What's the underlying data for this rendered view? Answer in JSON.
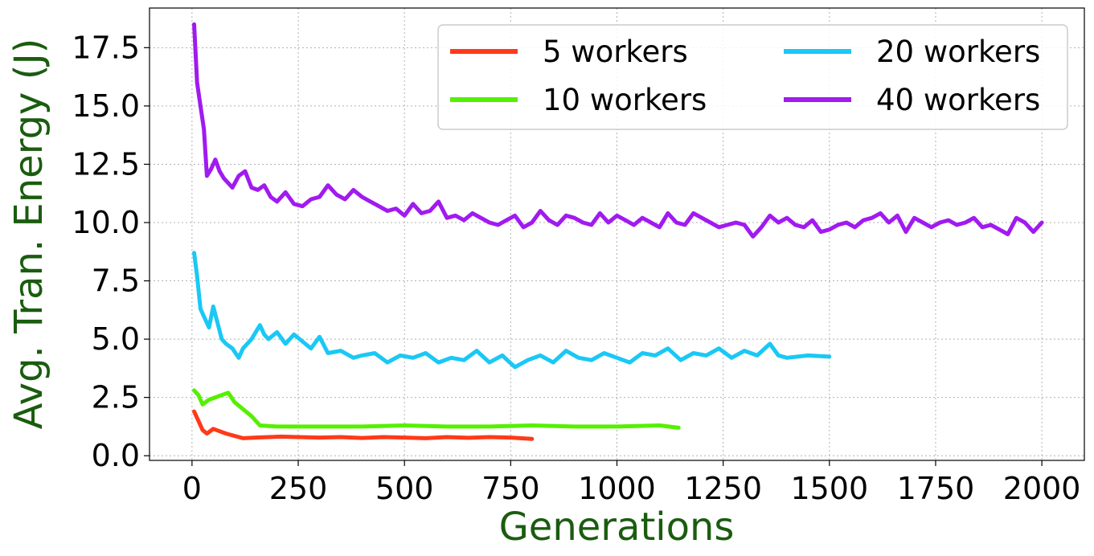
{
  "chart_data": {
    "type": "line",
    "xlabel": "Generations",
    "ylabel": "Avg. Tran. Energy (J)",
    "xlim": [
      -100,
      2100
    ],
    "ylim": [
      -0.2,
      19.2
    ],
    "xticks": [
      0,
      250,
      500,
      750,
      1000,
      1250,
      1500,
      1750,
      2000
    ],
    "xtick_labels": [
      "0",
      "250",
      "500",
      "750",
      "1000",
      "1250",
      "1500",
      "1750",
      "2000"
    ],
    "yticks": [
      0.0,
      2.5,
      5.0,
      7.5,
      10.0,
      12.5,
      15.0,
      17.5
    ],
    "ytick_labels": [
      "0.0",
      "2.5",
      "5.0",
      "7.5",
      "10.0",
      "12.5",
      "15.0",
      "17.5"
    ],
    "grid": true,
    "legend_position": "top-right",
    "label_color": "#1a5c0f",
    "series": [
      {
        "name": "5 workers",
        "color": "#ff3a1a",
        "x": [
          5,
          15,
          25,
          35,
          50,
          65,
          80,
          100,
          120,
          150,
          180,
          210,
          250,
          300,
          350,
          400,
          450,
          500,
          550,
          600,
          650,
          700,
          750,
          800
        ],
        "y": [
          1.9,
          1.5,
          1.1,
          0.95,
          1.15,
          1.05,
          0.95,
          0.85,
          0.75,
          0.78,
          0.8,
          0.82,
          0.8,
          0.78,
          0.8,
          0.76,
          0.8,
          0.78,
          0.75,
          0.8,
          0.77,
          0.8,
          0.78,
          0.72
        ]
      },
      {
        "name": "10 workers",
        "color": "#55f000",
        "x": [
          5,
          15,
          25,
          40,
          55,
          70,
          85,
          100,
          120,
          140,
          160,
          200,
          300,
          400,
          500,
          600,
          700,
          800,
          900,
          1000,
          1100,
          1145
        ],
        "y": [
          2.8,
          2.6,
          2.2,
          2.4,
          2.5,
          2.6,
          2.7,
          2.3,
          2.0,
          1.7,
          1.3,
          1.25,
          1.25,
          1.25,
          1.3,
          1.25,
          1.25,
          1.3,
          1.25,
          1.25,
          1.3,
          1.2
        ]
      },
      {
        "name": "20 workers",
        "color": "#1ac8f5",
        "x": [
          5,
          12,
          20,
          30,
          40,
          50,
          60,
          70,
          80,
          95,
          110,
          120,
          140,
          160,
          170,
          180,
          200,
          220,
          240,
          260,
          280,
          300,
          320,
          350,
          380,
          400,
          430,
          460,
          490,
          520,
          550,
          580,
          610,
          640,
          670,
          700,
          730,
          760,
          790,
          820,
          850,
          880,
          910,
          940,
          970,
          1000,
          1030,
          1060,
          1090,
          1120,
          1150,
          1180,
          1210,
          1240,
          1270,
          1300,
          1330,
          1360,
          1380,
          1400,
          1450,
          1500
        ],
        "y": [
          8.7,
          7.7,
          6.3,
          5.9,
          5.5,
          6.4,
          5.7,
          5.0,
          4.8,
          4.6,
          4.2,
          4.6,
          5.0,
          5.6,
          5.2,
          5.0,
          5.3,
          4.8,
          5.2,
          4.9,
          4.6,
          5.1,
          4.4,
          4.5,
          4.2,
          4.3,
          4.4,
          4.0,
          4.3,
          4.2,
          4.4,
          4.0,
          4.2,
          4.1,
          4.5,
          4.0,
          4.3,
          3.8,
          4.1,
          4.3,
          4.0,
          4.5,
          4.2,
          4.1,
          4.4,
          4.2,
          4.0,
          4.4,
          4.3,
          4.6,
          4.1,
          4.4,
          4.3,
          4.6,
          4.2,
          4.5,
          4.3,
          4.8,
          4.3,
          4.2,
          4.3,
          4.25
        ]
      },
      {
        "name": "40 workers",
        "color": "#a11af0",
        "x": [
          5,
          12,
          20,
          28,
          35,
          45,
          55,
          65,
          75,
          85,
          95,
          110,
          125,
          140,
          155,
          170,
          185,
          200,
          220,
          240,
          260,
          280,
          300,
          320,
          340,
          360,
          380,
          400,
          420,
          440,
          460,
          480,
          500,
          520,
          540,
          560,
          580,
          600,
          620,
          640,
          660,
          680,
          700,
          720,
          740,
          760,
          780,
          800,
          820,
          840,
          860,
          880,
          900,
          920,
          940,
          960,
          980,
          1000,
          1020,
          1040,
          1060,
          1080,
          1100,
          1120,
          1140,
          1160,
          1180,
          1200,
          1220,
          1240,
          1260,
          1280,
          1300,
          1320,
          1340,
          1360,
          1380,
          1400,
          1420,
          1440,
          1460,
          1480,
          1500,
          1520,
          1540,
          1560,
          1580,
          1600,
          1620,
          1640,
          1660,
          1680,
          1700,
          1720,
          1740,
          1760,
          1780,
          1800,
          1820,
          1840,
          1860,
          1880,
          1900,
          1920,
          1940,
          1960,
          1980,
          2000
        ],
        "y": [
          18.5,
          16.0,
          15.0,
          14.0,
          12.0,
          12.3,
          12.7,
          12.2,
          11.9,
          11.7,
          11.5,
          12.0,
          12.2,
          11.5,
          11.4,
          11.6,
          11.1,
          10.9,
          11.3,
          10.8,
          10.7,
          11.0,
          11.1,
          11.6,
          11.2,
          11.0,
          11.4,
          11.1,
          10.9,
          10.7,
          10.5,
          10.6,
          10.3,
          10.8,
          10.4,
          10.5,
          10.9,
          10.2,
          10.3,
          10.1,
          10.4,
          10.2,
          10.0,
          9.9,
          10.1,
          10.3,
          9.8,
          10.0,
          10.5,
          10.1,
          9.9,
          10.3,
          10.2,
          10.0,
          9.9,
          10.4,
          10.0,
          10.3,
          10.1,
          9.9,
          10.2,
          10.0,
          9.8,
          10.4,
          10.0,
          9.9,
          10.4,
          10.2,
          10.0,
          9.8,
          9.9,
          10.0,
          9.9,
          9.4,
          9.8,
          10.3,
          10.0,
          10.2,
          9.9,
          9.8,
          10.1,
          9.6,
          9.7,
          9.9,
          10.0,
          9.8,
          10.1,
          10.2,
          10.4,
          10.0,
          10.3,
          9.6,
          10.2,
          10.0,
          9.8,
          10.0,
          10.1,
          9.9,
          10.0,
          10.2,
          9.8,
          9.9,
          9.7,
          9.5,
          10.2,
          10.0,
          9.6,
          10.0
        ]
      }
    ]
  }
}
